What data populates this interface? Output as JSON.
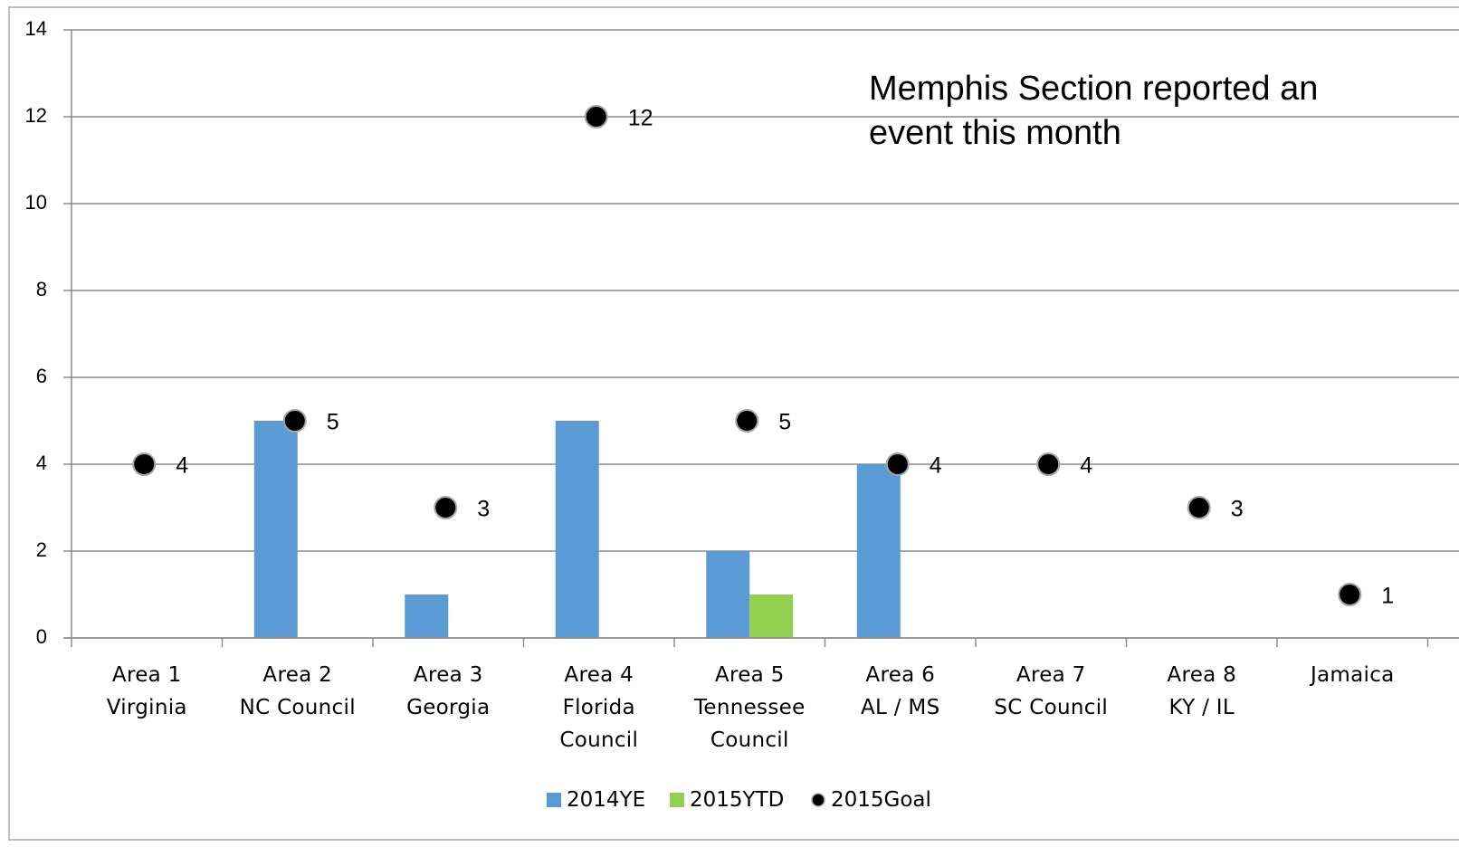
{
  "chart_data": {
    "type": "bar",
    "annotation": "Memphis Section reported an event this month",
    "categories": [
      "Area 1\nVirginia",
      "Area 2\nNC Council",
      "Area 3\nGeorgia",
      "Area 4\nFlorida\nCouncil",
      "Area 5\nTennessee\nCouncil",
      "Area 6\nAL / MS",
      "Area 7\nSC Council",
      "Area 8\nKY / IL",
      "Jamaica"
    ],
    "series": [
      {
        "name": "2014YE",
        "type": "bar",
        "color": "#5b9bd5",
        "values": [
          0,
          5,
          1,
          5,
          2,
          4,
          0,
          0,
          0
        ]
      },
      {
        "name": "2015YTD",
        "type": "bar",
        "color": "#92d050",
        "values": [
          0,
          0,
          0,
          0,
          1,
          0,
          0,
          0,
          0
        ]
      },
      {
        "name": "2015Goal",
        "type": "scatter",
        "color": "#000000",
        "values": [
          4,
          5,
          3,
          12,
          5,
          4,
          4,
          3,
          1
        ]
      }
    ],
    "ylim": [
      0,
      14
    ],
    "yticks": [
      0,
      2,
      4,
      6,
      8,
      10,
      12,
      14
    ],
    "grid": true
  }
}
